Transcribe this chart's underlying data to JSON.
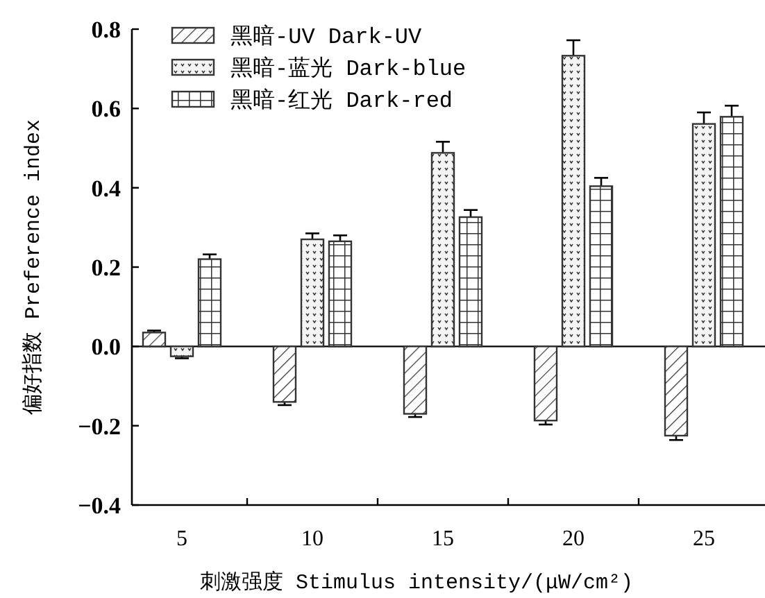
{
  "chart_data": {
    "type": "bar",
    "xlabel": "刺激强度 Stimulus intensity/(μW/cm²)",
    "ylabel": "偏好指数 Preference index",
    "categories": [
      "5",
      "10",
      "15",
      "20",
      "25"
    ],
    "series": [
      {
        "name": "黑暗-UV Dark-UV",
        "color": "#333333",
        "values": [
          0.035,
          -0.14,
          -0.17,
          -0.187,
          -0.225
        ],
        "errors": [
          [
            0.035,
            0.04
          ],
          [
            -0.148,
            -0.14
          ],
          [
            -0.178,
            -0.17
          ],
          [
            -0.197,
            -0.187
          ],
          [
            -0.236,
            -0.225
          ]
        ]
      },
      {
        "name": "黑暗-蓝光 Dark-blue",
        "color": "#333333",
        "values": [
          -0.025,
          0.27,
          0.488,
          0.733,
          0.561
        ],
        "errors": [
          [
            -0.03,
            -0.025
          ],
          [
            0.27,
            0.285
          ],
          [
            0.488,
            0.516
          ],
          [
            0.733,
            0.772
          ],
          [
            0.561,
            0.59
          ]
        ]
      },
      {
        "name": "黑暗-红光 Dark-red",
        "color": "#333333",
        "values": [
          0.22,
          0.265,
          0.326,
          0.404,
          0.579
        ],
        "errors": [
          [
            0.22,
            0.232
          ],
          [
            0.265,
            0.28
          ],
          [
            0.326,
            0.344
          ],
          [
            0.404,
            0.425
          ],
          [
            0.579,
            0.607
          ]
        ]
      }
    ],
    "ylim": [
      -0.4,
      0.8
    ],
    "yticks": [
      {
        "value": -0.4,
        "label": "−0.4"
      },
      {
        "value": -0.2,
        "label": "−0.2"
      },
      {
        "value": 0,
        "label": "0.0"
      },
      {
        "value": 0.2,
        "label": "0.2"
      },
      {
        "value": 0.4,
        "label": "0.4"
      },
      {
        "value": 0.6,
        "label": "0.6"
      },
      {
        "value": 0.8,
        "label": "0.8"
      }
    ],
    "legend": "top left"
  }
}
